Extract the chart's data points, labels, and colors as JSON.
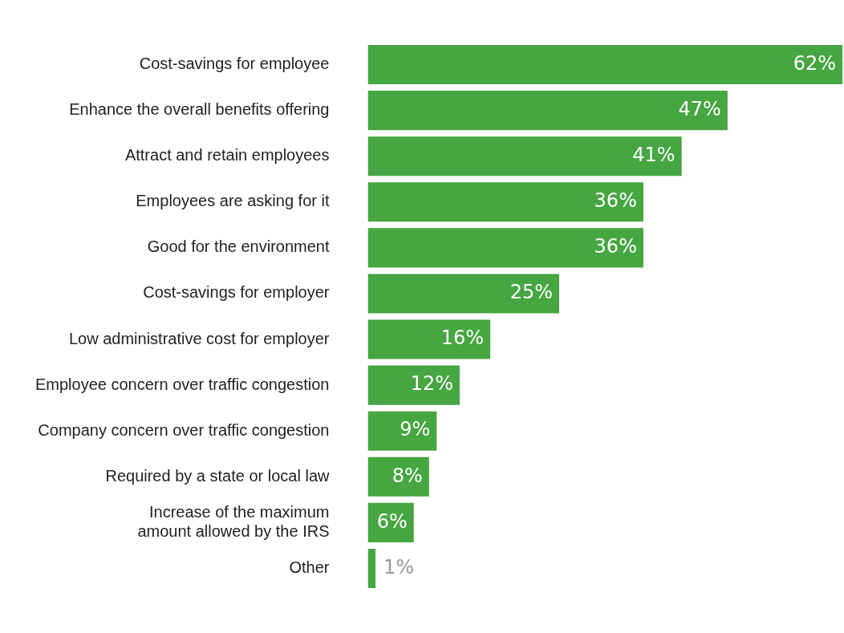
{
  "chart_data": {
    "type": "bar",
    "orientation": "horizontal",
    "categories": [
      "Cost-savings for employee",
      "Enhance the overall benefits offering",
      "Attract and retain employees",
      "Employees are asking for it",
      "Good for the environment",
      "Cost-savings for employer",
      "Low administrative cost for employer",
      "Employee concern over traffic congestion",
      "Company concern over traffic congestion",
      "Required by a state or local law",
      "Increase of the maximum amount allowed by the IRS",
      "Other"
    ],
    "values": [
      62,
      47,
      41,
      36,
      36,
      25,
      16,
      12,
      9,
      8,
      6,
      1
    ],
    "value_labels": [
      "62%",
      "47%",
      "41%",
      "36%",
      "36%",
      "25%",
      "16%",
      "12%",
      "9%",
      "8%",
      "6%",
      "1%"
    ],
    "color": "#46a641"
  }
}
